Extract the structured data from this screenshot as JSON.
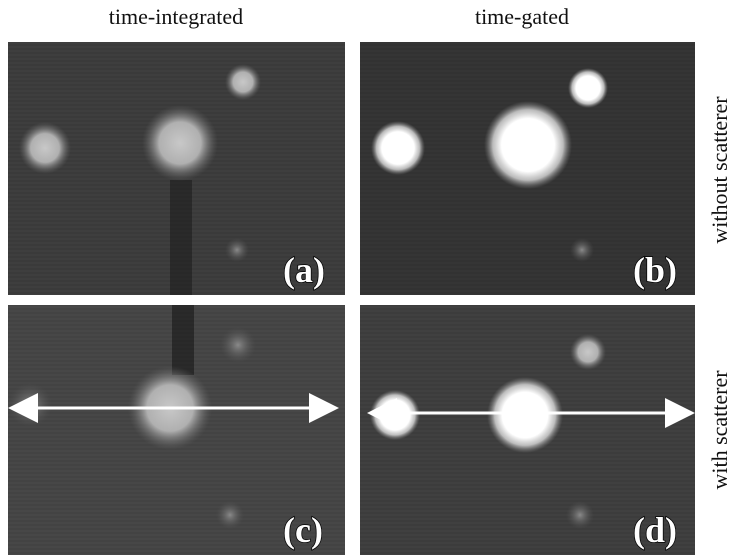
{
  "column_headers": [
    "time-integrated",
    "time-gated"
  ],
  "row_labels": [
    "without scatterer",
    "with scatterer"
  ],
  "panels": [
    {
      "label": "(a)"
    },
    {
      "label": "(b)"
    },
    {
      "label": "(c)"
    },
    {
      "label": "(d)"
    }
  ]
}
